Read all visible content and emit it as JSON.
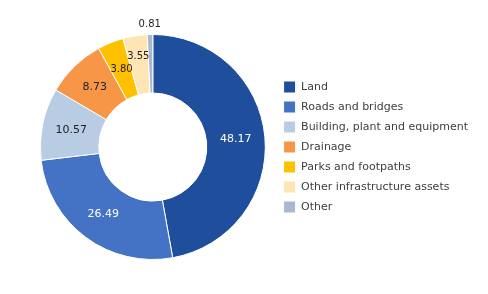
{
  "chart_data": {
    "type": "doughnut",
    "categories": [
      "Land",
      "Roads and bridges",
      "Building, plant and equipment",
      "Drainage",
      "Parks and footpaths",
      "Other infrastructure assets",
      "Other"
    ],
    "values": [
      48.17,
      26.49,
      10.57,
      8.73,
      3.8,
      3.55,
      0.81
    ],
    "value_labels": [
      "48.17",
      "26.49",
      "10.57",
      "8.73",
      "3.80",
      "3.55",
      "0.81"
    ],
    "colors": [
      "#1F4E9C",
      "#4472C4",
      "#B8CCE4",
      "#F79646",
      "#FFC000",
      "#FFE5B4",
      "#A8B8D0"
    ],
    "data_labels": true,
    "legend": "right"
  }
}
